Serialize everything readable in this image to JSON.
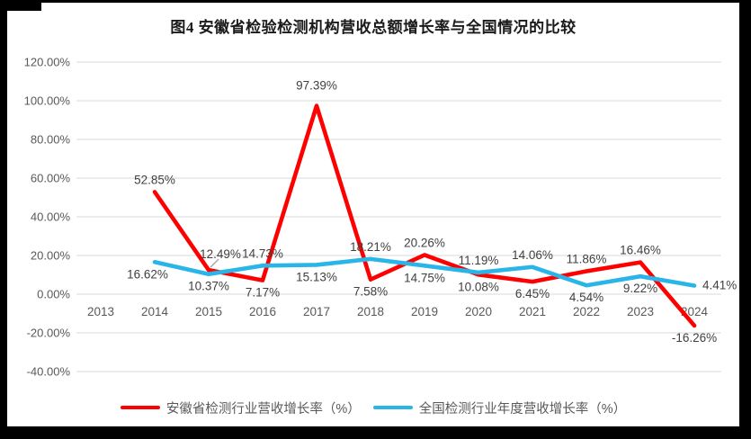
{
  "title": "图4  安徽省检验检测机构营收总额增长率与全国情况的比较",
  "colors": {
    "red": "#fe0000",
    "blue": "#2ab5e8",
    "grid": "#d9d9d9",
    "axis_text": "#595959",
    "data_label": "#404040",
    "leader": "#a6a6a6",
    "frame": "#000000"
  },
  "chart_data": {
    "type": "line",
    "categories": [
      "2013",
      "2014",
      "2015",
      "2016",
      "2017",
      "2018",
      "2019",
      "2020",
      "2021",
      "2022",
      "2023",
      "2024"
    ],
    "series": [
      {
        "name": "安徽省检测行业营收增长率（%）",
        "color_key": "red",
        "values": [
          null,
          52.85,
          12.49,
          7.17,
          97.39,
          7.58,
          20.26,
          10.08,
          6.45,
          11.86,
          16.46,
          -16.26
        ],
        "label_sides": [
          null,
          "above",
          "above-leader",
          "below",
          "above",
          "below",
          "above",
          "below",
          "below",
          "above",
          "above",
          "below"
        ],
        "label_dy_extra": {
          "4": -9
        },
        "label_dx_extra": {}
      },
      {
        "name": "全国检测行业年度营收增长率（%）",
        "color_key": "blue",
        "values": [
          null,
          16.62,
          10.37,
          14.73,
          15.13,
          18.21,
          14.75,
          11.19,
          14.06,
          4.54,
          9.22,
          4.41
        ],
        "label_sides": [
          null,
          "below",
          "below",
          "above",
          "below",
          "above",
          "below",
          "above",
          "above",
          "below",
          "below",
          "right"
        ],
        "label_dy_extra": {},
        "label_dx_extra": {
          "1": -8
        }
      }
    ],
    "ylim": [
      -40,
      120
    ],
    "ytick_step": 20,
    "ytick_labels": [
      "120.00%",
      "100.00%",
      "80.00%",
      "60.00%",
      "40.00%",
      "20.00%",
      "0.00%",
      "-20.00%",
      "-40.00%"
    ],
    "value_label_format": "{value}%",
    "grid": true,
    "legend_position": "bottom"
  }
}
